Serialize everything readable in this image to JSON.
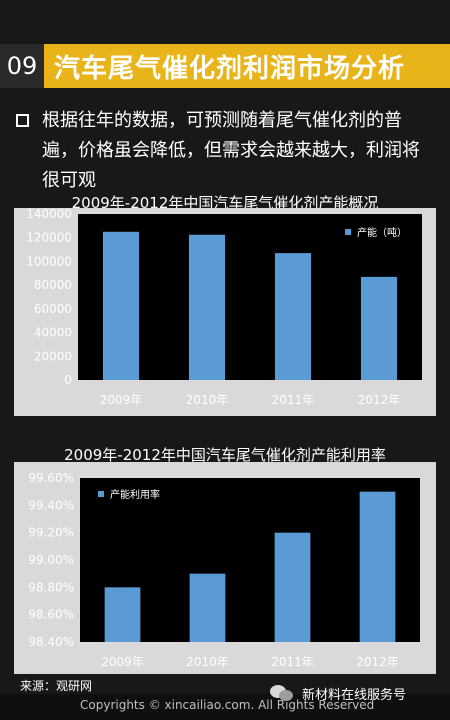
{
  "header": {
    "number": "09",
    "title": "汽车尾气催化剂利润市场分析"
  },
  "body": {
    "paragraph": "根据往年的数据，可预测随着尾气催化剂的普遍，价格虽会降低，但需求会越来越大，利润将很可观"
  },
  "chart_data": [
    {
      "type": "bar",
      "title": "2009年-2012年中国汽车尾气催化剂产能概况",
      "categories": [
        "2009年",
        "2010年",
        "2011年",
        "2012年"
      ],
      "series": [
        {
          "name": "产能（吨）",
          "values": [
            125000,
            122500,
            107000,
            87000
          ]
        }
      ],
      "ylim": [
        0,
        140000
      ],
      "yticks": [
        0,
        20000,
        40000,
        60000,
        80000,
        100000,
        120000,
        140000
      ],
      "ytick_labels": [
        "0",
        "20000",
        "40000",
        "60000",
        "80000",
        "100000",
        "120000",
        "140000"
      ],
      "legend": "top-right",
      "grid": false
    },
    {
      "type": "bar",
      "title": "2009年-2012年中国汽车尾气催化剂产能利用率",
      "categories": [
        "2009年",
        "2010年",
        "2011年",
        "2012年"
      ],
      "series": [
        {
          "name": "产能利用率",
          "values": [
            98.8,
            98.9,
            99.2,
            99.5
          ]
        }
      ],
      "ylim": [
        98.4,
        99.6
      ],
      "yticks": [
        98.4,
        98.6,
        98.8,
        99.0,
        99.2,
        99.4,
        99.6
      ],
      "ytick_labels": [
        "98.40%",
        "98.60%",
        "98.80%",
        "99.00%",
        "99.20%",
        "99.40%",
        "99.60%"
      ],
      "legend": "top-left",
      "grid": false
    }
  ],
  "footer": {
    "source": "来源：观研网",
    "copyright": "Copyrights © xincailiao.com. All Rights Reserved",
    "wechat": "新材料在线服务号"
  },
  "colors": {
    "header_bg": "#e9b31a",
    "bar": "#5b9bd5",
    "panel": "#d9d9d9",
    "plot": "#000000"
  }
}
